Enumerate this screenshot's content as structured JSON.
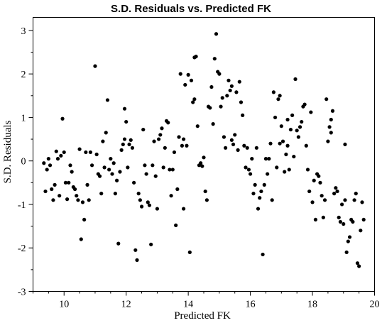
{
  "chart_data": {
    "type": "scatter",
    "title": "S.D. Residuals vs. Predicted FK",
    "xlabel": "Predicted FK",
    "ylabel": "S.D. Residuals",
    "xlim": [
      9,
      20
    ],
    "ylim": [
      -3,
      3.3
    ],
    "x_ticks": [
      10,
      12,
      14,
      16,
      18,
      20
    ],
    "y_ticks": [
      -3,
      -2,
      -1,
      0,
      1,
      2,
      3
    ],
    "grid": false,
    "point_color": "#000000",
    "points": [
      [
        9.35,
        -0.05
      ],
      [
        9.4,
        -0.7
      ],
      [
        9.45,
        -0.2
      ],
      [
        9.5,
        0.05
      ],
      [
        9.55,
        -0.1
      ],
      [
        9.6,
        -0.65
      ],
      [
        9.65,
        -0.9
      ],
      [
        9.7,
        -0.55
      ],
      [
        9.75,
        0.22
      ],
      [
        9.8,
        0.05
      ],
      [
        9.85,
        -0.8
      ],
      [
        9.9,
        0.12
      ],
      [
        9.95,
        0.97
      ],
      [
        10.0,
        0.2
      ],
      [
        10.05,
        -0.5
      ],
      [
        10.1,
        -0.88
      ],
      [
        10.15,
        -0.5
      ],
      [
        10.2,
        -0.1
      ],
      [
        10.25,
        -0.25
      ],
      [
        10.3,
        -0.6
      ],
      [
        10.35,
        -0.65
      ],
      [
        10.4,
        -0.8
      ],
      [
        10.45,
        -0.9
      ],
      [
        10.5,
        0.27
      ],
      [
        10.55,
        -1.8
      ],
      [
        10.6,
        -0.95
      ],
      [
        10.65,
        -1.35
      ],
      [
        10.7,
        0.2
      ],
      [
        10.75,
        -0.55
      ],
      [
        10.8,
        -0.9
      ],
      [
        10.85,
        0.2
      ],
      [
        10.9,
        -0.1
      ],
      [
        11.0,
        2.18
      ],
      [
        11.05,
        0.15
      ],
      [
        11.1,
        -0.3
      ],
      [
        11.15,
        -0.35
      ],
      [
        11.2,
        -0.75
      ],
      [
        11.25,
        0.45
      ],
      [
        11.3,
        -0.15
      ],
      [
        11.35,
        0.65
      ],
      [
        11.4,
        1.4
      ],
      [
        11.45,
        -0.2
      ],
      [
        11.5,
        0.05
      ],
      [
        11.55,
        -0.3
      ],
      [
        11.6,
        -0.05
      ],
      [
        11.65,
        -0.75
      ],
      [
        11.7,
        -0.45
      ],
      [
        11.75,
        -1.9
      ],
      [
        11.8,
        -0.25
      ],
      [
        11.85,
        0.25
      ],
      [
        11.9,
        0.38
      ],
      [
        11.95,
        1.2
      ],
      [
        12.0,
        0.9
      ],
      [
        12.05,
        -0.15
      ],
      [
        12.1,
        0.38
      ],
      [
        12.15,
        0.48
      ],
      [
        12.2,
        0.3
      ],
      [
        12.25,
        -0.5
      ],
      [
        12.3,
        -2.05
      ],
      [
        12.35,
        -2.28
      ],
      [
        12.4,
        -0.75
      ],
      [
        12.45,
        -0.9
      ],
      [
        12.5,
        -1.05
      ],
      [
        12.55,
        0.72
      ],
      [
        12.6,
        -0.1
      ],
      [
        12.65,
        -0.3
      ],
      [
        12.7,
        -0.95
      ],
      [
        12.75,
        -1.02
      ],
      [
        12.8,
        -1.92
      ],
      [
        12.85,
        -0.1
      ],
      [
        12.9,
        0.45
      ],
      [
        12.95,
        -0.35
      ],
      [
        13.0,
        -1.1
      ],
      [
        13.05,
        0.5
      ],
      [
        13.1,
        0.6
      ],
      [
        13.15,
        0.75
      ],
      [
        13.2,
        -0.15
      ],
      [
        13.25,
        0.3
      ],
      [
        13.3,
        0.92
      ],
      [
        13.35,
        0.88
      ],
      [
        13.4,
        -0.2
      ],
      [
        13.45,
        -0.8
      ],
      [
        13.5,
        -0.2
      ],
      [
        13.55,
        0.2
      ],
      [
        13.6,
        -1.48
      ],
      [
        13.65,
        -0.65
      ],
      [
        13.7,
        0.55
      ],
      [
        13.75,
        2.0
      ],
      [
        13.8,
        0.35
      ],
      [
        13.85,
        -1.1
      ],
      [
        13.9,
        1.75
      ],
      [
        13.95,
        0.35
      ],
      [
        14.0,
        1.98
      ],
      [
        14.05,
        -2.1
      ],
      [
        14.1,
        1.85
      ],
      [
        14.15,
        1.35
      ],
      [
        14.2,
        1.42
      ],
      [
        14.25,
        2.4
      ],
      [
        14.3,
        0.8
      ],
      [
        14.35,
        -0.1
      ],
      [
        14.4,
        -0.05
      ],
      [
        14.45,
        -0.12
      ],
      [
        14.5,
        0.08
      ],
      [
        14.55,
        -0.7
      ],
      [
        14.6,
        -0.9
      ],
      [
        14.65,
        1.25
      ],
      [
        14.7,
        1.22
      ],
      [
        14.75,
        1.7
      ],
      [
        14.8,
        0.85
      ],
      [
        14.85,
        2.35
      ],
      [
        14.9,
        2.92
      ],
      [
        14.95,
        2.05
      ],
      [
        15.0,
        2.0
      ],
      [
        15.05,
        1.25
      ],
      [
        15.1,
        1.45
      ],
      [
        15.15,
        0.55
      ],
      [
        15.2,
        0.3
      ],
      [
        15.25,
        1.5
      ],
      [
        15.3,
        1.85
      ],
      [
        15.35,
        1.62
      ],
      [
        15.4,
        0.48
      ],
      [
        15.45,
        0.38
      ],
      [
        15.5,
        0.6
      ],
      [
        15.55,
        1.58
      ],
      [
        15.6,
        0.25
      ],
      [
        15.65,
        1.82
      ],
      [
        15.7,
        1.35
      ],
      [
        15.75,
        1.05
      ],
      [
        15.8,
        0.35
      ],
      [
        15.85,
        -0.15
      ],
      [
        15.9,
        0.3
      ],
      [
        15.95,
        -0.2
      ],
      [
        16.0,
        -0.3
      ],
      [
        16.05,
        0.05
      ],
      [
        16.1,
        -0.75
      ],
      [
        16.15,
        -0.55
      ],
      [
        16.2,
        0.3
      ],
      [
        16.25,
        -1.1
      ],
      [
        16.3,
        -0.85
      ],
      [
        16.35,
        -0.7
      ],
      [
        16.4,
        -2.15
      ],
      [
        16.45,
        -0.55
      ],
      [
        16.5,
        0.05
      ],
      [
        16.55,
        -0.3
      ],
      [
        16.6,
        0.05
      ],
      [
        16.65,
        0.4
      ],
      [
        16.7,
        -0.9
      ],
      [
        16.75,
        1.58
      ],
      [
        16.8,
        1.0
      ],
      [
        16.85,
        -0.15
      ],
      [
        16.9,
        1.42
      ],
      [
        16.95,
        0.4
      ],
      [
        17.0,
        0.8
      ],
      [
        17.05,
        0.45
      ],
      [
        17.1,
        -0.25
      ],
      [
        17.15,
        0.15
      ],
      [
        17.2,
        0.35
      ],
      [
        17.25,
        -0.2
      ],
      [
        17.3,
        0.72
      ],
      [
        17.35,
        1.05
      ],
      [
        17.4,
        0.1
      ],
      [
        17.45,
        1.88
      ],
      [
        17.5,
        0.7
      ],
      [
        17.55,
        0.55
      ],
      [
        17.6,
        0.78
      ],
      [
        17.65,
        0.9
      ],
      [
        17.7,
        1.25
      ],
      [
        17.75,
        1.3
      ],
      [
        17.8,
        0.35
      ],
      [
        17.85,
        -0.2
      ],
      [
        17.9,
        -0.7
      ],
      [
        17.95,
        1.12
      ],
      [
        18.0,
        -0.95
      ],
      [
        18.05,
        -0.45
      ],
      [
        18.1,
        -1.35
      ],
      [
        18.15,
        -0.3
      ],
      [
        18.2,
        -0.35
      ],
      [
        18.25,
        -0.5
      ],
      [
        18.3,
        -0.8
      ],
      [
        18.35,
        -1.3
      ],
      [
        18.4,
        -0.9
      ],
      [
        18.45,
        1.42
      ],
      [
        18.5,
        0.45
      ],
      [
        18.55,
        0.78
      ],
      [
        18.6,
        0.95
      ],
      [
        18.65,
        1.15
      ],
      [
        18.7,
        -0.75
      ],
      [
        18.75,
        -0.62
      ],
      [
        18.8,
        -0.7
      ],
      [
        18.85,
        -1.3
      ],
      [
        18.9,
        -1.4
      ],
      [
        18.95,
        -1.0
      ],
      [
        19.0,
        -1.45
      ],
      [
        19.05,
        -0.9
      ],
      [
        19.1,
        -2.1
      ],
      [
        19.15,
        -1.85
      ],
      [
        19.2,
        -1.75
      ],
      [
        19.25,
        -1.35
      ],
      [
        19.3,
        -1.4
      ],
      [
        19.35,
        -0.9
      ],
      [
        19.4,
        -0.75
      ],
      [
        19.45,
        -2.35
      ],
      [
        19.5,
        -2.42
      ],
      [
        19.55,
        -1.6
      ],
      [
        19.6,
        -0.95
      ],
      [
        19.65,
        -1.35
      ],
      [
        18.6,
        0.65
      ],
      [
        19.05,
        0.38
      ],
      [
        17.2,
        0.95
      ],
      [
        16.95,
        1.5
      ],
      [
        15.4,
        1.72
      ],
      [
        14.2,
        2.38
      ],
      [
        11.95,
        0.5
      ],
      [
        13.85,
        0.5
      ]
    ]
  }
}
